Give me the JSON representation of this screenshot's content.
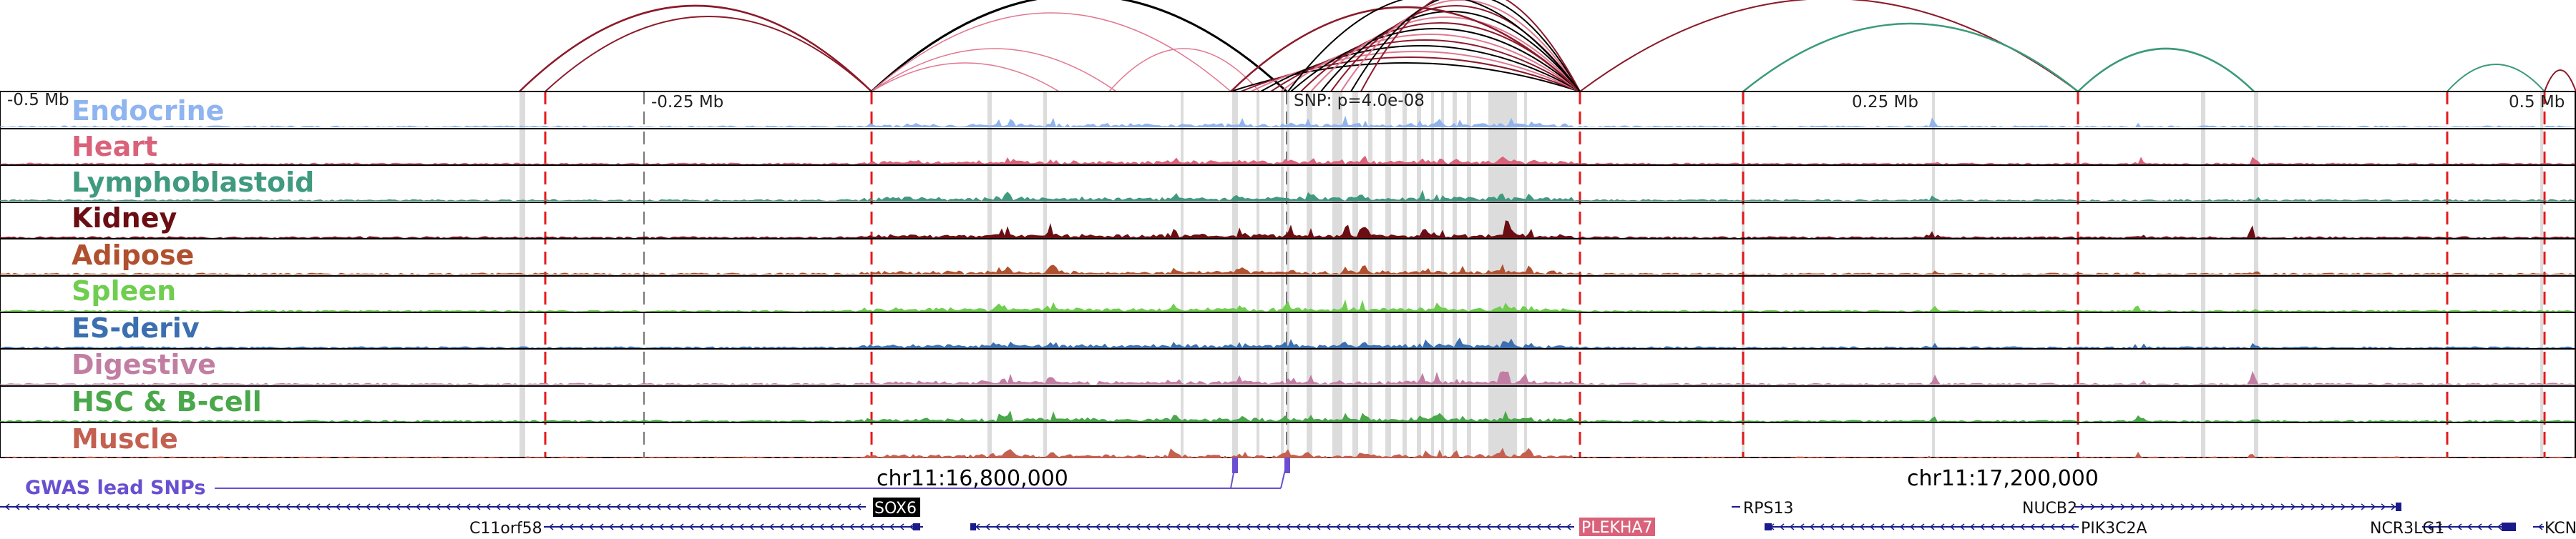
{
  "scale_labels": [
    "-0.5 Mb",
    "-0.25 Mb",
    "0.25 Mb",
    "0.5 Mb"
  ],
  "snp_label": "SNP: p=4.0e-08",
  "tracks": [
    {
      "name": "Endocrine",
      "color": "#8fb4f0"
    },
    {
      "name": "Heart",
      "color": "#d9627a"
    },
    {
      "name": "Lymphoblastoid",
      "color": "#3f9a80"
    },
    {
      "name": "Kidney",
      "color": "#6b0e14"
    },
    {
      "name": "Adipose",
      "color": "#b0502e"
    },
    {
      "name": "Spleen",
      "color": "#6fce4f"
    },
    {
      "name": "ES-deriv",
      "color": "#3b6fb0"
    },
    {
      "name": "Digestive",
      "color": "#c27ea2"
    },
    {
      "name": "HSC & B-cell",
      "color": "#4aa84a"
    },
    {
      "name": "Muscle",
      "color": "#c46050"
    }
  ],
  "gwas_label": "GWAS lead SNPs",
  "coordinate_labels": [
    "chr11:16,800,000",
    "chr11:17,200,000"
  ],
  "genes": [
    {
      "name": "SOX6",
      "highlight": "black"
    },
    {
      "name": "C11orf58",
      "highlight": ""
    },
    {
      "name": "PLEKHA7",
      "highlight": "pink"
    },
    {
      "name": "RPS13",
      "highlight": ""
    },
    {
      "name": "NUCB2",
      "highlight": ""
    },
    {
      "name": "PIK3C2A",
      "highlight": ""
    },
    {
      "name": "NCR3LG1",
      "highlight": ""
    },
    {
      "name": "KCN",
      "highlight": ""
    }
  ],
  "colors": {
    "loop_dark_red": "#8b1a2a",
    "loop_pink": "#e07890",
    "loop_black": "#000000",
    "loop_green": "#3a9a7a",
    "boundary_red": "#e41a1c",
    "gene_blue": "#1a1a8c",
    "gwas_purple": "#6a4fd0",
    "highlight_gray": "#dcdcdc"
  }
}
